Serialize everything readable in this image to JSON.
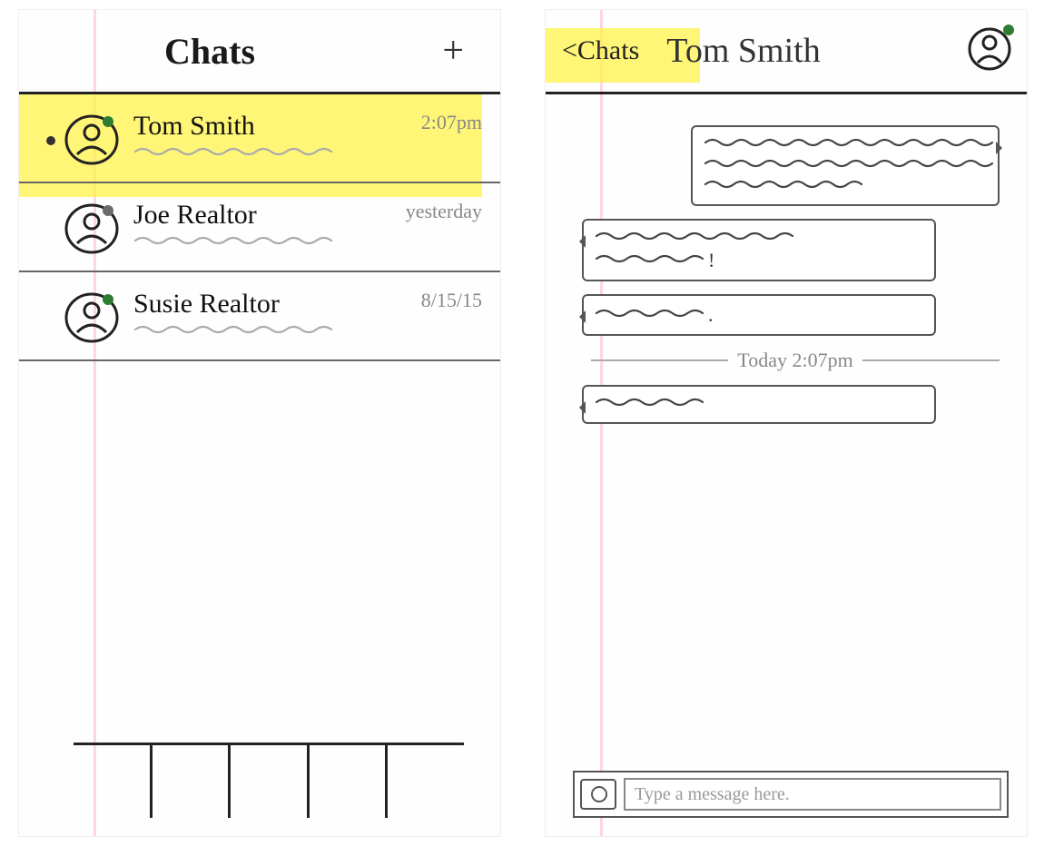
{
  "colors": {
    "highlight": "#fff24a",
    "marginLine": "#ffb3c6",
    "ink": "#222222",
    "muted": "#888888",
    "presenceGreen": "#2e7d32",
    "presenceGrey": "#6b6b6b"
  },
  "listScreen": {
    "title": "Chats",
    "addIcon": "+",
    "chats": [
      {
        "name": "Tom Smith",
        "time": "2:07pm",
        "unread": true,
        "presence": "green",
        "highlighted": true
      },
      {
        "name": "Joe Realtor",
        "time": "yesterday",
        "unread": false,
        "presence": "grey",
        "highlighted": false
      },
      {
        "name": "Susie Realtor",
        "time": "8/15/15",
        "unread": false,
        "presence": "green",
        "highlighted": false
      }
    ],
    "tabCount": 5
  },
  "detailScreen": {
    "backLabel": "Chats",
    "title": "Tom Smith",
    "backHighlighted": true,
    "presence": "green",
    "dateSeparator": "Today 2:07pm",
    "composerPlaceholder": "Type a message here.",
    "messages": [
      {
        "direction": "out",
        "lines": 3
      },
      {
        "direction": "in",
        "lines": 2,
        "trailing": "!"
      },
      {
        "direction": "in",
        "lines": 1,
        "trailing": "."
      },
      {
        "separator": true
      },
      {
        "direction": "in",
        "lines": 1
      }
    ]
  }
}
